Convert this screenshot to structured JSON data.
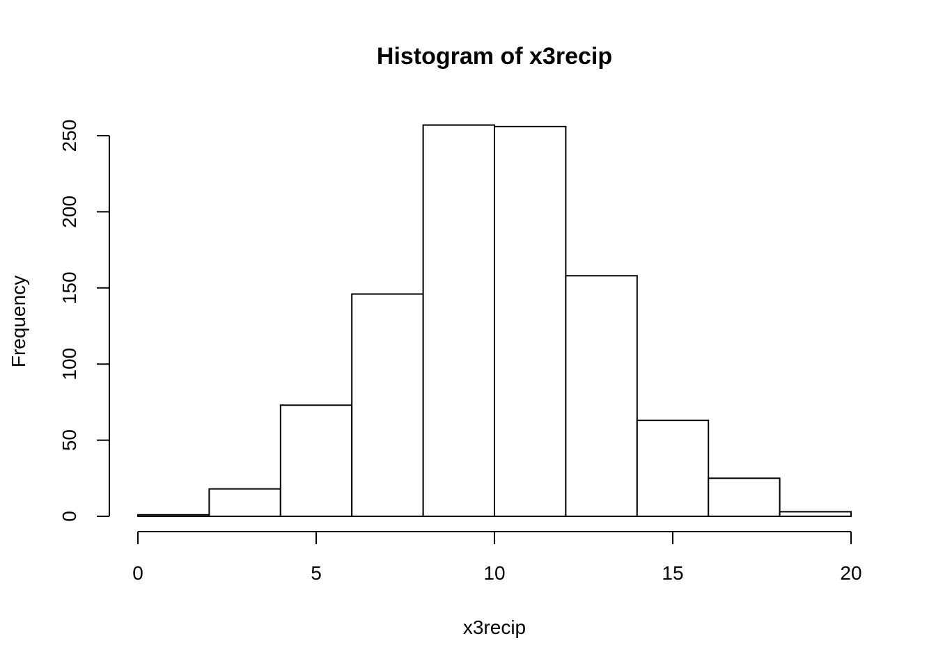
{
  "chart_data": {
    "type": "bar",
    "subtype": "histogram",
    "title": "Histogram of x3recip",
    "xlabel": "x3recip",
    "ylabel": "Frequency",
    "bin_edges": [
      0,
      2,
      4,
      6,
      8,
      10,
      12,
      14,
      16,
      18,
      20
    ],
    "values": [
      1,
      18,
      73,
      146,
      257,
      256,
      158,
      63,
      25,
      3
    ],
    "xlim": [
      0,
      20
    ],
    "ylim": [
      0,
      257
    ],
    "x_ticks": [
      0,
      5,
      10,
      15,
      20
    ],
    "x_tick_labels": [
      "0",
      "5",
      "10",
      "15",
      "20"
    ],
    "y_ticks": [
      0,
      50,
      100,
      150,
      200,
      250
    ],
    "y_tick_labels": [
      "0",
      "50",
      "100",
      "150",
      "200",
      "250"
    ],
    "grid": false,
    "bar_fill": "#ffffff",
    "bar_stroke": "#000000"
  }
}
